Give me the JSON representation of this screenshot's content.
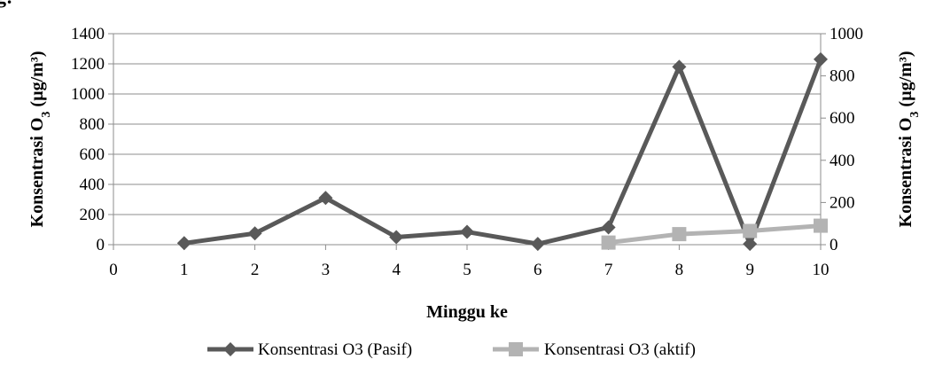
{
  "top_fragment": "g:",
  "chart_data": {
    "type": "line",
    "x": [
      0,
      1,
      2,
      3,
      4,
      5,
      6,
      7,
      8,
      9,
      10
    ],
    "xlabel": "Minggu ke",
    "xlim": [
      0,
      10
    ],
    "ylabel_left": "Konsentrasi O3 (µg/m³)",
    "ylabel_right": "Konsentrasi O3 (µg/m³)",
    "ylim_left": [
      0,
      1400
    ],
    "ylim_right": [
      0,
      1000
    ],
    "yticks_left": [
      0,
      200,
      400,
      600,
      800,
      1000,
      1200,
      1400
    ],
    "yticks_right": [
      0,
      200,
      400,
      600,
      800,
      1000
    ],
    "grid": true,
    "legend_position": "bottom",
    "series": [
      {
        "name": "Konsentrasi O3 (Pasif)",
        "axis": "left",
        "color": "#595959",
        "marker": "diamond",
        "points": [
          [
            1,
            10
          ],
          [
            2,
            75
          ],
          [
            3,
            310
          ],
          [
            4,
            50
          ],
          [
            5,
            85
          ],
          [
            6,
            5
          ],
          [
            7,
            115
          ],
          [
            8,
            1180
          ],
          [
            9,
            5
          ],
          [
            10,
            1230
          ]
        ]
      },
      {
        "name": "Konsentrasi O3 (aktif)",
        "axis": "right",
        "color": "#b3b3b3",
        "marker": "square",
        "points": [
          [
            7,
            10
          ],
          [
            8,
            50
          ],
          [
            9,
            65
          ],
          [
            10,
            90
          ]
        ]
      }
    ]
  }
}
